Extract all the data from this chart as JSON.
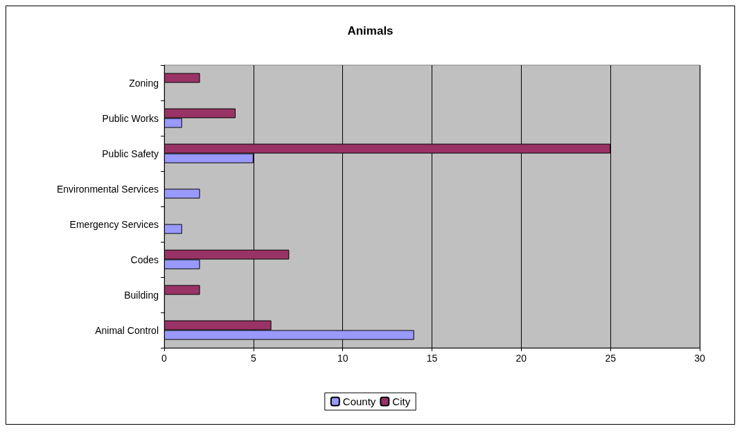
{
  "chart_data": {
    "type": "bar",
    "orientation": "horizontal",
    "title": "Animals",
    "categories": [
      "Zoning",
      "Public Works",
      "Public Safety",
      "Environmental Services",
      "Emergency Services",
      "Codes",
      "Building",
      "Animal Control"
    ],
    "series": [
      {
        "name": "County",
        "color": "#9999ff",
        "values": [
          null,
          1,
          5,
          2,
          1,
          2,
          null,
          14
        ]
      },
      {
        "name": "City",
        "color": "#993366",
        "values": [
          2,
          4,
          25,
          null,
          null,
          7,
          2,
          6
        ]
      }
    ],
    "xlim": [
      0,
      30
    ],
    "xticks": [
      0,
      5,
      10,
      15,
      20,
      25,
      30
    ],
    "grid": "x",
    "legend": "bottom"
  }
}
